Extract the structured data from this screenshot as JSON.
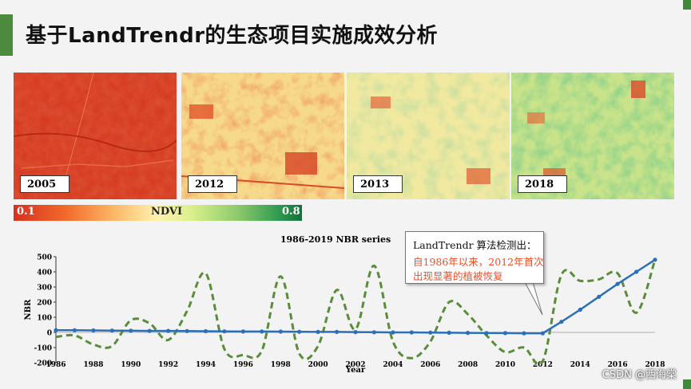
{
  "slide": {
    "title": "基于LandTrendr的生态项目实施成效分析"
  },
  "ndvi_panels": [
    {
      "year": "2005"
    },
    {
      "year": "2012"
    },
    {
      "year": "2013"
    },
    {
      "year": "2018"
    }
  ],
  "colorbar": {
    "min_label": "0.1",
    "mid_label": "NDVI",
    "max_label": "0.8"
  },
  "callout": {
    "line1": "LandTrendr 算法检测出：",
    "line2": "自1986年以来，2012年首次",
    "line3": "出现显著的植被恢复",
    "border_color": "#777777",
    "highlight_color": "#e8502c"
  },
  "colors": {
    "accent_green": "#4c8b3e",
    "fitted_line": "#2a6fb8",
    "nbr_dashed": "#5a8c3a"
  },
  "chart_data": {
    "type": "line",
    "title": "1986-2019 NBR series",
    "xlabel": "Year",
    "ylabel": "NBR",
    "xlim": [
      1986,
      2018
    ],
    "ylim": [
      -200,
      500
    ],
    "x_ticks": [
      "1986",
      "1988",
      "1990",
      "1992",
      "1994",
      "1996",
      "1998",
      "2000",
      "2002",
      "2004",
      "2006",
      "2008",
      "2010",
      "2012",
      "2014",
      "2016",
      "2018"
    ],
    "y_ticks": [
      "500",
      "400",
      "300",
      "200",
      "100",
      "0",
      "-100",
      "-200"
    ],
    "series": [
      {
        "style": "dashed",
        "color": "#5a8c3a",
        "x": [
          1986,
          1987,
          1988,
          1989,
          1990,
          1991,
          1992,
          1993,
          1994,
          1995,
          1996,
          1997,
          1998,
          1999,
          2000,
          2001,
          2002,
          2003,
          2004,
          2005,
          2006,
          2007,
          2008,
          2009,
          2010,
          2011,
          2012,
          2013,
          2014,
          2015,
          2016,
          2017,
          2018
        ],
        "values": [
          -30,
          -20,
          -80,
          -90,
          80,
          60,
          -50,
          140,
          390,
          -110,
          -150,
          -120,
          370,
          -140,
          -90,
          280,
          20,
          440,
          -60,
          -170,
          -60,
          200,
          120,
          -20,
          -130,
          -100,
          -190,
          380,
          340,
          350,
          390,
          130,
          480
        ]
      },
      {
        "style": "solid-markers",
        "color": "#2a6fb8",
        "x": [
          1986,
          1987,
          1988,
          1989,
          1990,
          1991,
          1992,
          1993,
          1994,
          1995,
          1996,
          1997,
          1998,
          1999,
          2000,
          2001,
          2002,
          2003,
          2004,
          2005,
          2006,
          2007,
          2008,
          2009,
          2010,
          2011,
          2012,
          2013,
          2014,
          2015,
          2016,
          2017,
          2018
        ],
        "values": [
          15,
          14,
          13,
          12,
          11,
          10,
          10,
          9,
          8,
          7,
          6,
          6,
          5,
          4,
          3,
          3,
          2,
          1,
          0,
          0,
          -1,
          -2,
          -3,
          -4,
          -5,
          -6,
          -6,
          70,
          150,
          235,
          320,
          400,
          480
        ]
      }
    ]
  }
}
